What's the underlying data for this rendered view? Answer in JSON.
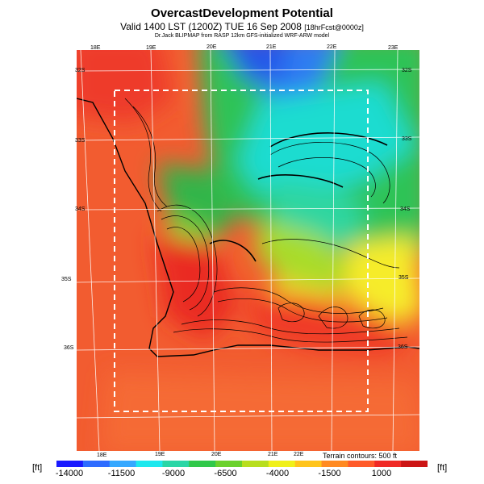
{
  "title": "OvercastDevelopment Potential",
  "subtitle_main": "Valid 1400 LST (1200Z) TUE 16 Sep 2008",
  "subtitle_small": "[18hrFcst@0000z]",
  "credit": "Dr.Jack BLIPMAP from RASP 12km GFS-initialized WRF-ARW model",
  "terrain_note": "Terrain contours: 500 ft",
  "colorbar": {
    "unit_left": "[ft]",
    "unit_right": "[ft]",
    "ticks": [
      "-14000",
      "-11500",
      "-9000",
      "-6500",
      "-4000",
      "-1500",
      "1000"
    ],
    "colors": [
      "#1a1aff",
      "#2e6cff",
      "#35a8ff",
      "#1de8ee",
      "#2ad6a6",
      "#31c84a",
      "#6bd12c",
      "#b8de1e",
      "#f0f01a",
      "#ffc41c",
      "#ff8a22",
      "#ff5a2a",
      "#f02a26",
      "#cc1515"
    ]
  },
  "map": {
    "lon_labels_top": [
      "18E",
      "19E",
      "20E",
      "21E",
      "22E",
      "23E"
    ],
    "lon_labels_bottom": [
      "18E",
      "19E",
      "20E",
      "21E",
      "22E"
    ],
    "lat_labels_left": [
      "32S",
      "33S",
      "34S",
      "35S",
      "36S"
    ],
    "lat_labels_right": [
      "32S",
      "33S",
      "34S",
      "35S",
      "36S"
    ]
  }
}
